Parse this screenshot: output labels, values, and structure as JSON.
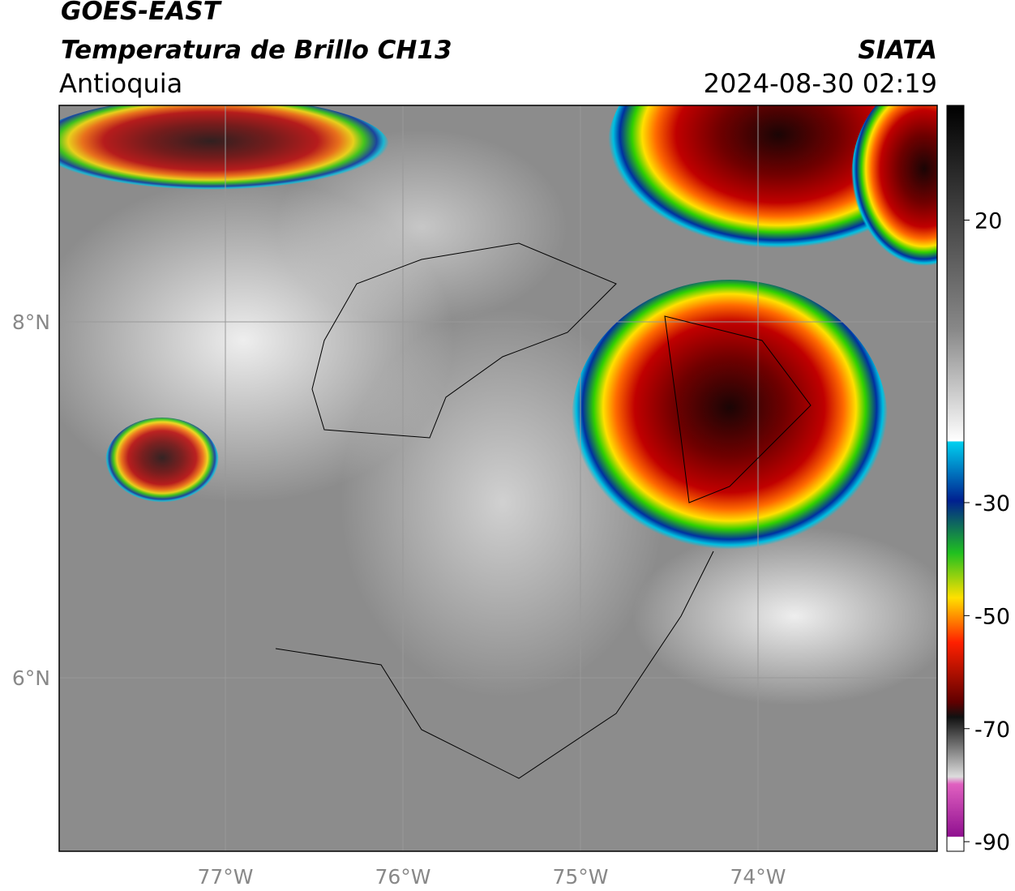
{
  "header": {
    "satellite": "GOES-EAST",
    "product": "Temperatura de Brillo CH13",
    "region": "Antioquia",
    "source": "SIATA",
    "datetime": "2024-08-30 02:19"
  },
  "map": {
    "lon_labels": [
      "77°W",
      "76°W",
      "75°W",
      "74°W"
    ],
    "lat_labels": [
      "8°N",
      "6°N"
    ]
  },
  "colorbar": {
    "limits": [
      40.3,
      -91.7
    ],
    "ticks": [
      20,
      -30,
      -50,
      -70,
      -90
    ]
  }
}
